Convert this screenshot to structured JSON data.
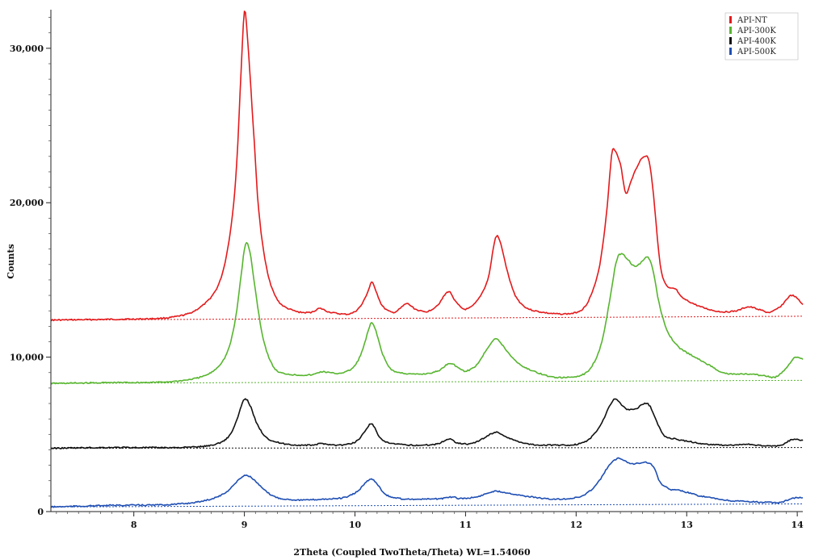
{
  "chart_data": {
    "type": "line",
    "title": "",
    "xlabel": "2Theta (Coupled TwoTheta/Theta) WL=1.54060",
    "ylabel": "Counts",
    "xlim": [
      7.25,
      14.05
    ],
    "ylim": [
      0,
      32500
    ],
    "x_ticks": [
      8,
      9,
      10,
      11,
      12,
      13,
      14
    ],
    "x_tick_labels": [
      "8",
      "9",
      "10",
      "11",
      "12",
      "13",
      "14"
    ],
    "y_ticks": [
      0,
      10000,
      20000,
      30000
    ],
    "y_tick_labels": [
      "0",
      "10,000",
      "20,000",
      "30,000"
    ],
    "legend_position": "top-right",
    "grid": false,
    "series": [
      {
        "name": "API-NT",
        "color": "#e31a1c",
        "baseline": 12400,
        "baseline_end": 12650,
        "points": [
          [
            7.25,
            12400
          ],
          [
            7.8,
            12450
          ],
          [
            8.2,
            12500
          ],
          [
            8.4,
            12650
          ],
          [
            8.55,
            13000
          ],
          [
            8.7,
            13900
          ],
          [
            8.8,
            15400
          ],
          [
            8.88,
            18500
          ],
          [
            8.93,
            22500
          ],
          [
            8.97,
            28500
          ],
          [
            9.0,
            32400
          ],
          [
            9.03,
            30500
          ],
          [
            9.08,
            25000
          ],
          [
            9.13,
            19500
          ],
          [
            9.2,
            15800
          ],
          [
            9.3,
            13700
          ],
          [
            9.45,
            13000
          ],
          [
            9.6,
            12900
          ],
          [
            9.68,
            13150
          ],
          [
            9.78,
            12900
          ],
          [
            9.95,
            12800
          ],
          [
            10.05,
            13300
          ],
          [
            10.12,
            14300
          ],
          [
            10.15,
            14850
          ],
          [
            10.19,
            14300
          ],
          [
            10.25,
            13300
          ],
          [
            10.35,
            12900
          ],
          [
            10.45,
            13400
          ],
          [
            10.48,
            13450
          ],
          [
            10.55,
            13100
          ],
          [
            10.65,
            12950
          ],
          [
            10.75,
            13400
          ],
          [
            10.82,
            14100
          ],
          [
            10.86,
            14200
          ],
          [
            10.92,
            13500
          ],
          [
            11.0,
            13100
          ],
          [
            11.1,
            13600
          ],
          [
            11.2,
            15000
          ],
          [
            11.25,
            17000
          ],
          [
            11.28,
            17850
          ],
          [
            11.32,
            17300
          ],
          [
            11.38,
            15500
          ],
          [
            11.45,
            14000
          ],
          [
            11.55,
            13200
          ],
          [
            11.7,
            12900
          ],
          [
            11.85,
            12800
          ],
          [
            12.0,
            12900
          ],
          [
            12.1,
            13500
          ],
          [
            12.2,
            15500
          ],
          [
            12.27,
            19000
          ],
          [
            12.32,
            23000
          ],
          [
            12.35,
            23400
          ],
          [
            12.4,
            22500
          ],
          [
            12.45,
            20600
          ],
          [
            12.5,
            21500
          ],
          [
            12.57,
            22600
          ],
          [
            12.62,
            23000
          ],
          [
            12.66,
            22700
          ],
          [
            12.7,
            20500
          ],
          [
            12.76,
            16000
          ],
          [
            12.82,
            14600
          ],
          [
            12.9,
            14400
          ],
          [
            12.95,
            13900
          ],
          [
            13.05,
            13500
          ],
          [
            13.15,
            13200
          ],
          [
            13.3,
            12950
          ],
          [
            13.45,
            13000
          ],
          [
            13.55,
            13250
          ],
          [
            13.65,
            13100
          ],
          [
            13.75,
            12900
          ],
          [
            13.85,
            13300
          ],
          [
            13.95,
            14000
          ],
          [
            14.05,
            13400
          ]
        ]
      },
      {
        "name": "API-300K",
        "color": "#57b52f",
        "baseline": 8300,
        "baseline_end": 8500,
        "points": [
          [
            7.25,
            8300
          ],
          [
            7.8,
            8350
          ],
          [
            8.3,
            8400
          ],
          [
            8.6,
            8700
          ],
          [
            8.75,
            9300
          ],
          [
            8.85,
            10400
          ],
          [
            8.92,
            12500
          ],
          [
            8.97,
            15300
          ],
          [
            9.01,
            17300
          ],
          [
            9.05,
            16800
          ],
          [
            9.1,
            14300
          ],
          [
            9.17,
            11200
          ],
          [
            9.27,
            9300
          ],
          [
            9.4,
            8900
          ],
          [
            9.6,
            8850
          ],
          [
            9.7,
            9050
          ],
          [
            9.85,
            8950
          ],
          [
            9.98,
            9300
          ],
          [
            10.06,
            10300
          ],
          [
            10.12,
            11700
          ],
          [
            10.15,
            12200
          ],
          [
            10.19,
            11700
          ],
          [
            10.25,
            10200
          ],
          [
            10.33,
            9200
          ],
          [
            10.45,
            8950
          ],
          [
            10.6,
            8900
          ],
          [
            10.75,
            9100
          ],
          [
            10.85,
            9600
          ],
          [
            10.92,
            9400
          ],
          [
            11.0,
            9100
          ],
          [
            11.1,
            9500
          ],
          [
            11.2,
            10600
          ],
          [
            11.27,
            11200
          ],
          [
            11.33,
            10800
          ],
          [
            11.42,
            10000
          ],
          [
            11.52,
            9400
          ],
          [
            11.65,
            9000
          ],
          [
            11.8,
            8700
          ],
          [
            12.0,
            8750
          ],
          [
            12.12,
            9200
          ],
          [
            12.22,
            10700
          ],
          [
            12.3,
            13500
          ],
          [
            12.36,
            16100
          ],
          [
            12.41,
            16700
          ],
          [
            12.47,
            16300
          ],
          [
            12.53,
            15900
          ],
          [
            12.6,
            16200
          ],
          [
            12.64,
            16500
          ],
          [
            12.69,
            15800
          ],
          [
            12.75,
            13500
          ],
          [
            12.82,
            11800
          ],
          [
            12.92,
            10700
          ],
          [
            13.05,
            10100
          ],
          [
            13.2,
            9500
          ],
          [
            13.35,
            8950
          ],
          [
            13.55,
            8900
          ],
          [
            13.7,
            8800
          ],
          [
            13.8,
            8700
          ],
          [
            13.9,
            9300
          ],
          [
            13.98,
            10000
          ],
          [
            14.05,
            9850
          ]
        ]
      },
      {
        "name": "API-400K",
        "color": "#111111",
        "baseline": 4100,
        "baseline_end": 4150,
        "points": [
          [
            7.25,
            4100
          ],
          [
            7.8,
            4150
          ],
          [
            8.4,
            4150
          ],
          [
            8.7,
            4300
          ],
          [
            8.85,
            4800
          ],
          [
            8.93,
            5900
          ],
          [
            8.98,
            7000
          ],
          [
            9.01,
            7300
          ],
          [
            9.05,
            6900
          ],
          [
            9.12,
            5600
          ],
          [
            9.22,
            4700
          ],
          [
            9.4,
            4350
          ],
          [
            9.6,
            4300
          ],
          [
            9.7,
            4400
          ],
          [
            9.85,
            4300
          ],
          [
            10.0,
            4500
          ],
          [
            10.09,
            5200
          ],
          [
            10.14,
            5700
          ],
          [
            10.18,
            5400
          ],
          [
            10.25,
            4600
          ],
          [
            10.4,
            4350
          ],
          [
            10.6,
            4300
          ],
          [
            10.75,
            4400
          ],
          [
            10.85,
            4700
          ],
          [
            10.93,
            4450
          ],
          [
            11.05,
            4400
          ],
          [
            11.15,
            4700
          ],
          [
            11.25,
            5100
          ],
          [
            11.3,
            5100
          ],
          [
            11.38,
            4800
          ],
          [
            11.45,
            4600
          ],
          [
            11.6,
            4350
          ],
          [
            11.8,
            4300
          ],
          [
            12.0,
            4350
          ],
          [
            12.12,
            4700
          ],
          [
            12.22,
            5600
          ],
          [
            12.3,
            6800
          ],
          [
            12.35,
            7300
          ],
          [
            12.4,
            7000
          ],
          [
            12.47,
            6600
          ],
          [
            12.55,
            6700
          ],
          [
            12.62,
            7000
          ],
          [
            12.67,
            6800
          ],
          [
            12.73,
            5800
          ],
          [
            12.8,
            4900
          ],
          [
            12.9,
            4700
          ],
          [
            13.05,
            4500
          ],
          [
            13.2,
            4350
          ],
          [
            13.4,
            4300
          ],
          [
            13.55,
            4350
          ],
          [
            13.7,
            4250
          ],
          [
            13.85,
            4300
          ],
          [
            13.95,
            4650
          ],
          [
            14.05,
            4600
          ]
        ]
      },
      {
        "name": "API-500K",
        "color": "#1f4fb4",
        "baseline": 300,
        "baseline_end": 500,
        "points": [
          [
            7.25,
            300
          ],
          [
            7.8,
            400
          ],
          [
            8.3,
            450
          ],
          [
            8.6,
            650
          ],
          [
            8.8,
            1100
          ],
          [
            8.9,
            1700
          ],
          [
            8.97,
            2200
          ],
          [
            9.02,
            2350
          ],
          [
            9.08,
            2100
          ],
          [
            9.18,
            1400
          ],
          [
            9.3,
            900
          ],
          [
            9.5,
            750
          ],
          [
            9.7,
            800
          ],
          [
            9.9,
            900
          ],
          [
            10.02,
            1300
          ],
          [
            10.1,
            1900
          ],
          [
            10.15,
            2100
          ],
          [
            10.2,
            1800
          ],
          [
            10.28,
            1100
          ],
          [
            10.4,
            850
          ],
          [
            10.6,
            800
          ],
          [
            10.8,
            850
          ],
          [
            10.88,
            950
          ],
          [
            10.95,
            850
          ],
          [
            11.1,
            950
          ],
          [
            11.25,
            1300
          ],
          [
            11.35,
            1250
          ],
          [
            11.5,
            1050
          ],
          [
            11.65,
            900
          ],
          [
            11.8,
            800
          ],
          [
            12.0,
            900
          ],
          [
            12.1,
            1200
          ],
          [
            12.2,
            1900
          ],
          [
            12.3,
            3000
          ],
          [
            12.38,
            3450
          ],
          [
            12.44,
            3300
          ],
          [
            12.5,
            3100
          ],
          [
            12.57,
            3150
          ],
          [
            12.63,
            3200
          ],
          [
            12.7,
            2900
          ],
          [
            12.76,
            1900
          ],
          [
            12.85,
            1450
          ],
          [
            12.95,
            1350
          ],
          [
            13.1,
            1050
          ],
          [
            13.25,
            850
          ],
          [
            13.4,
            700
          ],
          [
            13.55,
            650
          ],
          [
            13.7,
            600
          ],
          [
            13.85,
            600
          ],
          [
            13.95,
            850
          ],
          [
            14.05,
            900
          ]
        ]
      }
    ]
  }
}
